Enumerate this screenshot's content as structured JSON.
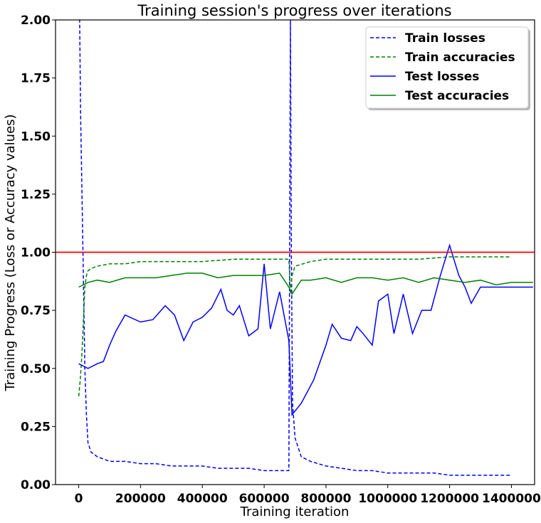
{
  "chart_data": {
    "type": "line",
    "title": "Training session's progress over iterations",
    "xlabel": "Training iteration",
    "ylabel": "Training Progress (Loss or Accuracy values)",
    "xlim": [
      -75000,
      1475000
    ],
    "ylim": [
      0,
      2.0
    ],
    "x_ticks": [
      0,
      200000,
      400000,
      600000,
      800000,
      1000000,
      1200000,
      1400000
    ],
    "x_tick_labels": [
      "0",
      "200000",
      "400000",
      "600000",
      "800000",
      "1000000",
      "1200000",
      "1400000"
    ],
    "y_ticks": [
      0,
      0.25,
      0.5,
      0.75,
      1.0,
      1.25,
      1.5,
      1.75,
      2.0
    ],
    "y_tick_labels": [
      "0.00",
      "0.25",
      "0.50",
      "0.75",
      "1.00",
      "1.25",
      "1.50",
      "1.75",
      "2.00"
    ],
    "grid": false,
    "legend_position": "top-right",
    "reference_line": {
      "y": 1.0,
      "color": "#ff0000"
    },
    "series": [
      {
        "name": "Train losses",
        "style": "dashed",
        "color": "#0000ff",
        "x": [
          0,
          3000,
          6000,
          10000,
          15000,
          20000,
          25000,
          30000,
          40000,
          60000,
          80000,
          100000,
          150000,
          200000,
          250000,
          300000,
          350000,
          400000,
          450000,
          500000,
          550000,
          600000,
          650000,
          680000,
          685000,
          688000,
          692000,
          700000,
          720000,
          750000,
          800000,
          850000,
          900000,
          950000,
          1000000,
          1050000,
          1100000,
          1150000,
          1200000,
          1250000,
          1300000,
          1350000,
          1400000
        ],
        "values": [
          2.0,
          2.0,
          1.6,
          1.3,
          0.9,
          0.5,
          0.3,
          0.18,
          0.14,
          0.12,
          0.11,
          0.1,
          0.1,
          0.09,
          0.09,
          0.08,
          0.08,
          0.08,
          0.07,
          0.07,
          0.07,
          0.06,
          0.06,
          0.06,
          2.0,
          1.0,
          0.35,
          0.2,
          0.12,
          0.1,
          0.08,
          0.07,
          0.06,
          0.06,
          0.05,
          0.05,
          0.05,
          0.05,
          0.04,
          0.04,
          0.04,
          0.04,
          0.04
        ]
      },
      {
        "name": "Train accuracies",
        "style": "dashed",
        "color": "#008000",
        "x": [
          0,
          5000,
          10000,
          15000,
          20000,
          25000,
          30000,
          40000,
          60000,
          100000,
          150000,
          200000,
          300000,
          400000,
          500000,
          600000,
          680000,
          685000,
          690000,
          700000,
          750000,
          800000,
          900000,
          1000000,
          1100000,
          1200000,
          1300000,
          1400000
        ],
        "values": [
          0.38,
          0.45,
          0.55,
          0.7,
          0.85,
          0.9,
          0.92,
          0.93,
          0.94,
          0.95,
          0.95,
          0.96,
          0.96,
          0.96,
          0.97,
          0.97,
          0.97,
          0.82,
          0.9,
          0.94,
          0.96,
          0.97,
          0.97,
          0.97,
          0.97,
          0.98,
          0.98,
          0.98
        ]
      },
      {
        "name": "Test losses",
        "style": "solid",
        "color": "#0000ff",
        "x": [
          0,
          15000,
          30000,
          60000,
          80000,
          100000,
          120000,
          150000,
          200000,
          240000,
          280000,
          310000,
          340000,
          370000,
          400000,
          430000,
          460000,
          480000,
          500000,
          520000,
          550000,
          580000,
          600000,
          620000,
          650000,
          680000,
          690000,
          720000,
          760000,
          800000,
          820000,
          850000,
          880000,
          900000,
          920000,
          950000,
          970000,
          1000000,
          1020000,
          1050000,
          1080000,
          1110000,
          1140000,
          1170000,
          1200000,
          1230000,
          1250000,
          1270000,
          1300000,
          1330000,
          1400000,
          1470000
        ],
        "values": [
          0.52,
          0.51,
          0.5,
          0.52,
          0.53,
          0.6,
          0.66,
          0.73,
          0.7,
          0.71,
          0.77,
          0.73,
          0.62,
          0.7,
          0.72,
          0.76,
          0.84,
          0.75,
          0.73,
          0.77,
          0.64,
          0.67,
          0.95,
          0.67,
          0.83,
          0.62,
          0.3,
          0.35,
          0.45,
          0.6,
          0.69,
          0.63,
          0.62,
          0.68,
          0.65,
          0.6,
          0.79,
          0.82,
          0.65,
          0.82,
          0.65,
          0.75,
          0.75,
          0.9,
          1.03,
          0.9,
          0.85,
          0.78,
          0.85,
          0.85,
          0.85,
          0.85
        ]
      },
      {
        "name": "Test accuracies",
        "style": "solid",
        "color": "#008000",
        "x": [
          0,
          30000,
          60000,
          100000,
          150000,
          200000,
          250000,
          300000,
          350000,
          400000,
          450000,
          500000,
          550000,
          600000,
          650000,
          680000,
          690000,
          720000,
          750000,
          800000,
          850000,
          900000,
          950000,
          1000000,
          1050000,
          1100000,
          1150000,
          1200000,
          1250000,
          1300000,
          1350000,
          1400000,
          1470000
        ],
        "values": [
          0.85,
          0.87,
          0.88,
          0.87,
          0.89,
          0.89,
          0.89,
          0.9,
          0.91,
          0.91,
          0.89,
          0.9,
          0.9,
          0.9,
          0.91,
          0.85,
          0.82,
          0.88,
          0.88,
          0.89,
          0.87,
          0.89,
          0.89,
          0.88,
          0.89,
          0.87,
          0.89,
          0.88,
          0.87,
          0.88,
          0.86,
          0.87,
          0.87
        ]
      }
    ]
  }
}
